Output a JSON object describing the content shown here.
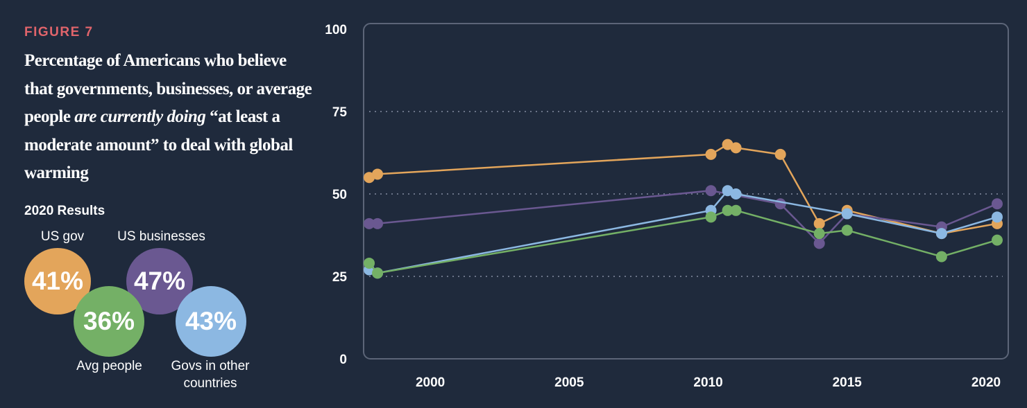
{
  "figure_label": "FIGURE 7",
  "title": {
    "part1": "Percentage of Americans who believe that governments, businesses, or average people ",
    "emphasis": "are currently doing",
    "part2": " “at least a moderate amount” to deal with global warming"
  },
  "results": {
    "heading": "2020 Results",
    "items": [
      {
        "label": "US gov",
        "value": "41%",
        "color": "#e3a55b"
      },
      {
        "label": "US businesses",
        "value": "47%",
        "color": "#6a5891"
      },
      {
        "label": "Avg people",
        "value": "36%",
        "color": "#74b066"
      },
      {
        "label": "Govs in other countries",
        "value": "43%",
        "color": "#8cb8e2"
      }
    ]
  },
  "chart_data": {
    "type": "line",
    "title": "",
    "xlabel": "",
    "ylabel": "",
    "xlim": [
      1997.6,
      2020.8
    ],
    "ylim": [
      0,
      100
    ],
    "x_ticks": [
      2000,
      2005,
      2010,
      2015,
      2020
    ],
    "y_ticks": [
      0,
      25,
      50,
      75,
      100
    ],
    "grid": "dotted horizontal at 25, 50, 75",
    "series": [
      {
        "key": "us_gov",
        "color": "#e3a55b",
        "x": [
          1997.8,
          1998.1,
          2010.1,
          2010.7,
          2011.0,
          2012.6,
          2014.0,
          2015.0,
          2018.4,
          2020.4
        ],
        "y": [
          55,
          56,
          62,
          65,
          64,
          62,
          41,
          45,
          38,
          41
        ]
      },
      {
        "key": "us_businesses",
        "color": "#6a5891",
        "x": [
          1997.8,
          1998.1,
          2010.1,
          2012.6,
          2014.0,
          2015.0,
          2018.4,
          2020.4
        ],
        "y": [
          41,
          41,
          51,
          47,
          35,
          44,
          40,
          47
        ]
      },
      {
        "key": "govs_other",
        "color": "#8cb8e2",
        "x": [
          1997.8,
          1998.1,
          2010.1,
          2010.7,
          2011.0,
          2015.0,
          2018.4,
          2020.4
        ],
        "y": [
          27,
          26,
          45,
          51,
          50,
          44,
          38,
          43
        ]
      },
      {
        "key": "avg_people",
        "color": "#74b066",
        "x": [
          1997.8,
          1998.1,
          2010.1,
          2010.7,
          2011.0,
          2014.0,
          2015.0,
          2018.4,
          2020.4
        ],
        "y": [
          29,
          26,
          43,
          45,
          45,
          38,
          39,
          31,
          36
        ]
      }
    ]
  }
}
